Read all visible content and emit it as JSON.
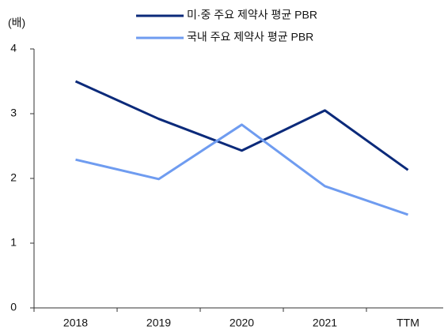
{
  "chart_data": {
    "type": "line",
    "y_label": "(배)",
    "categories": [
      "2018",
      "2019",
      "2020",
      "2021",
      "TTM"
    ],
    "series": [
      {
        "name": "미·중 주요 제약사 평균 PBR",
        "color": "#0b2a7a",
        "values": [
          3.5,
          2.92,
          2.43,
          3.05,
          2.13
        ]
      },
      {
        "name": "국내 주요 제약사 평균 PBR",
        "color": "#6f9cf0",
        "values": [
          2.29,
          1.99,
          2.83,
          1.88,
          1.44
        ]
      }
    ],
    "ylim": [
      0,
      4
    ],
    "yticks": [
      0,
      1,
      2,
      3,
      4
    ],
    "grid": false,
    "legend": "top"
  }
}
